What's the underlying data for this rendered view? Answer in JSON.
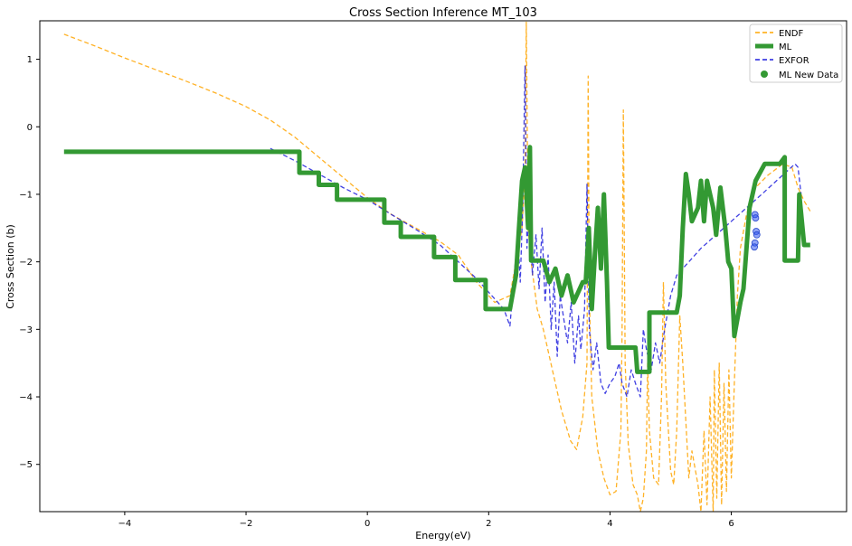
{
  "chart_data": {
    "type": "line",
    "title": "Cross Section Inference MT_103",
    "xlabel": "Energy(eV)",
    "ylabel": "Cross Section (b)",
    "xlim": [
      -5.4,
      7.9
    ],
    "ylim": [
      -5.7,
      1.57
    ],
    "xticks": [
      -4,
      -2,
      0,
      2,
      4,
      6
    ],
    "yticks": [
      -5,
      -4,
      -3,
      -2,
      -1,
      0,
      1
    ],
    "xtick_labels": [
      "−4",
      "−2",
      "0",
      "2",
      "4",
      "6"
    ],
    "ytick_labels": [
      "−5",
      "−4",
      "−3",
      "−2",
      "−1",
      "0",
      "1"
    ],
    "grid": false,
    "legend_position": "top-right",
    "series": [
      {
        "name": "ENDF",
        "color": "#ffa500",
        "style": "dashed",
        "points": [
          [
            -5.0,
            1.37
          ],
          [
            -4.5,
            1.2
          ],
          [
            -4.0,
            1.02
          ],
          [
            -3.5,
            0.85
          ],
          [
            -3.0,
            0.68
          ],
          [
            -2.5,
            0.5
          ],
          [
            -2.0,
            0.3
          ],
          [
            -1.6,
            0.1
          ],
          [
            -1.2,
            -0.15
          ],
          [
            -0.8,
            -0.45
          ],
          [
            -0.4,
            -0.75
          ],
          [
            0.0,
            -1.05
          ],
          [
            0.4,
            -1.3
          ],
          [
            0.8,
            -1.5
          ],
          [
            1.2,
            -1.7
          ],
          [
            1.5,
            -1.9
          ],
          [
            1.8,
            -2.3
          ],
          [
            2.1,
            -2.6
          ],
          [
            2.35,
            -2.5
          ],
          [
            2.45,
            -2.0
          ],
          [
            2.55,
            -1.5
          ],
          [
            2.6,
            -0.7
          ],
          [
            2.62,
            1.55
          ],
          [
            2.65,
            -1.5
          ],
          [
            2.7,
            -2.0
          ],
          [
            2.8,
            -2.7
          ],
          [
            2.9,
            -3.0
          ],
          [
            3.05,
            -3.6
          ],
          [
            3.2,
            -4.2
          ],
          [
            3.35,
            -4.65
          ],
          [
            3.45,
            -4.78
          ],
          [
            3.55,
            -4.3
          ],
          [
            3.62,
            -3.5
          ],
          [
            3.64,
            0.75
          ],
          [
            3.66,
            -2.5
          ],
          [
            3.7,
            -4.0
          ],
          [
            3.8,
            -4.8
          ],
          [
            3.9,
            -5.2
          ],
          [
            4.0,
            -5.45
          ],
          [
            4.1,
            -5.4
          ],
          [
            4.18,
            -4.5
          ],
          [
            4.2,
            -3.0
          ],
          [
            4.22,
            0.25
          ],
          [
            4.25,
            -3.5
          ],
          [
            4.3,
            -4.7
          ],
          [
            4.38,
            -5.3
          ],
          [
            4.45,
            -5.45
          ],
          [
            4.5,
            -5.7
          ],
          [
            4.55,
            -5.5
          ],
          [
            4.6,
            -4.8
          ],
          [
            4.62,
            -3.5
          ],
          [
            4.65,
            -4.5
          ],
          [
            4.72,
            -5.2
          ],
          [
            4.8,
            -5.3
          ],
          [
            4.85,
            -4.0
          ],
          [
            4.88,
            -2.3
          ],
          [
            4.92,
            -3.8
          ],
          [
            5.0,
            -5.1
          ],
          [
            5.05,
            -5.3
          ],
          [
            5.1,
            -4.5
          ],
          [
            5.15,
            -2.8
          ],
          [
            5.2,
            -3.5
          ],
          [
            5.3,
            -5.2
          ],
          [
            5.35,
            -4.8
          ],
          [
            5.45,
            -5.3
          ],
          [
            5.5,
            -5.7
          ],
          [
            5.55,
            -4.5
          ],
          [
            5.6,
            -5.6
          ],
          [
            5.65,
            -4.0
          ],
          [
            5.7,
            -5.7
          ],
          [
            5.72,
            -3.6
          ],
          [
            5.76,
            -5.5
          ],
          [
            5.8,
            -3.5
          ],
          [
            5.84,
            -5.6
          ],
          [
            5.88,
            -3.8
          ],
          [
            5.92,
            -5.4
          ],
          [
            5.96,
            -3.6
          ],
          [
            6.0,
            -5.2
          ],
          [
            6.05,
            -3.8
          ],
          [
            6.1,
            -2.5
          ],
          [
            6.15,
            -1.8
          ],
          [
            6.25,
            -1.3
          ],
          [
            6.4,
            -0.9
          ],
          [
            6.6,
            -0.72
          ],
          [
            6.85,
            -0.55
          ],
          [
            7.0,
            -0.6
          ],
          [
            7.1,
            -0.9
          ],
          [
            7.2,
            -1.1
          ],
          [
            7.3,
            -1.25
          ]
        ]
      },
      {
        "name": "ML",
        "color": "#339933",
        "style": "solid-thick",
        "points": [
          [
            -5.0,
            -0.37
          ],
          [
            -1.12,
            -0.37
          ],
          [
            -1.12,
            -0.68
          ],
          [
            -0.8,
            -0.68
          ],
          [
            -0.8,
            -0.86
          ],
          [
            -0.5,
            -0.86
          ],
          [
            -0.5,
            -1.08
          ],
          [
            0.28,
            -1.08
          ],
          [
            0.28,
            -1.42
          ],
          [
            0.55,
            -1.42
          ],
          [
            0.55,
            -1.63
          ],
          [
            1.1,
            -1.63
          ],
          [
            1.1,
            -1.93
          ],
          [
            1.45,
            -1.93
          ],
          [
            1.45,
            -2.27
          ],
          [
            1.95,
            -2.27
          ],
          [
            1.95,
            -2.7
          ],
          [
            2.35,
            -2.7
          ],
          [
            2.45,
            -2.2
          ],
          [
            2.5,
            -1.5
          ],
          [
            2.55,
            -0.8
          ],
          [
            2.6,
            -0.6
          ],
          [
            2.65,
            -1.5
          ],
          [
            2.68,
            -0.3
          ],
          [
            2.7,
            -1.98
          ],
          [
            2.9,
            -1.98
          ],
          [
            3.0,
            -2.3
          ],
          [
            3.1,
            -2.1
          ],
          [
            3.2,
            -2.5
          ],
          [
            3.3,
            -2.2
          ],
          [
            3.4,
            -2.6
          ],
          [
            3.55,
            -2.3
          ],
          [
            3.6,
            -2.3
          ],
          [
            3.65,
            -1.5
          ],
          [
            3.7,
            -2.7
          ],
          [
            3.75,
            -1.9
          ],
          [
            3.8,
            -1.2
          ],
          [
            3.85,
            -2.1
          ],
          [
            3.9,
            -1.0
          ],
          [
            3.95,
            -2.3
          ],
          [
            3.98,
            -3.27
          ],
          [
            4.42,
            -3.27
          ],
          [
            4.45,
            -3.63
          ],
          [
            4.65,
            -3.63
          ],
          [
            4.65,
            -2.75
          ],
          [
            5.1,
            -2.75
          ],
          [
            5.15,
            -2.5
          ],
          [
            5.2,
            -1.5
          ],
          [
            5.25,
            -0.7
          ],
          [
            5.3,
            -1.0
          ],
          [
            5.35,
            -1.4
          ],
          [
            5.45,
            -1.2
          ],
          [
            5.5,
            -0.8
          ],
          [
            5.55,
            -1.4
          ],
          [
            5.6,
            -0.8
          ],
          [
            5.7,
            -1.2
          ],
          [
            5.75,
            -1.6
          ],
          [
            5.82,
            -0.9
          ],
          [
            5.9,
            -1.5
          ],
          [
            5.95,
            -2.0
          ],
          [
            6.0,
            -2.1
          ],
          [
            6.05,
            -3.1
          ],
          [
            6.15,
            -2.6
          ],
          [
            6.2,
            -2.4
          ],
          [
            6.3,
            -1.2
          ],
          [
            6.4,
            -0.8
          ],
          [
            6.55,
            -0.55
          ],
          [
            6.8,
            -0.55
          ],
          [
            6.88,
            -0.45
          ],
          [
            6.88,
            -1.98
          ],
          [
            7.1,
            -1.98
          ],
          [
            7.12,
            -1.0
          ],
          [
            7.2,
            -1.75
          ],
          [
            7.3,
            -1.75
          ]
        ]
      },
      {
        "name": "EXFOR",
        "color": "#1f1fdd",
        "style": "dashed",
        "points": [
          [
            -1.6,
            -0.32
          ],
          [
            -1.2,
            -0.5
          ],
          [
            -0.8,
            -0.7
          ],
          [
            -0.4,
            -0.9
          ],
          [
            0.0,
            -1.08
          ],
          [
            0.4,
            -1.3
          ],
          [
            0.8,
            -1.52
          ],
          [
            1.2,
            -1.75
          ],
          [
            1.5,
            -2.0
          ],
          [
            1.8,
            -2.25
          ],
          [
            2.05,
            -2.5
          ],
          [
            2.25,
            -2.7
          ],
          [
            2.35,
            -2.95
          ],
          [
            2.42,
            -2.2
          ],
          [
            2.48,
            -1.6
          ],
          [
            2.52,
            -2.3
          ],
          [
            2.56,
            -1.2
          ],
          [
            2.6,
            0.9
          ],
          [
            2.63,
            -1.8
          ],
          [
            2.68,
            -1.0
          ],
          [
            2.72,
            -2.2
          ],
          [
            2.78,
            -1.6
          ],
          [
            2.83,
            -2.4
          ],
          [
            2.88,
            -1.5
          ],
          [
            2.93,
            -2.6
          ],
          [
            2.98,
            -1.9
          ],
          [
            3.03,
            -3.0
          ],
          [
            3.08,
            -2.3
          ],
          [
            3.13,
            -3.4
          ],
          [
            3.18,
            -2.5
          ],
          [
            3.23,
            -2.8
          ],
          [
            3.3,
            -3.2
          ],
          [
            3.36,
            -2.6
          ],
          [
            3.42,
            -3.5
          ],
          [
            3.48,
            -2.8
          ],
          [
            3.52,
            -3.3
          ],
          [
            3.58,
            -2.7
          ],
          [
            3.62,
            -0.85
          ],
          [
            3.66,
            -3.0
          ],
          [
            3.72,
            -3.6
          ],
          [
            3.78,
            -3.2
          ],
          [
            3.85,
            -3.8
          ],
          [
            3.92,
            -3.95
          ],
          [
            4.0,
            -3.8
          ],
          [
            4.08,
            -3.7
          ],
          [
            4.15,
            -3.5
          ],
          [
            4.2,
            -3.8
          ],
          [
            4.28,
            -4.0
          ],
          [
            4.35,
            -3.6
          ],
          [
            4.42,
            -3.8
          ],
          [
            4.5,
            -4.0
          ],
          [
            4.55,
            -3.0
          ],
          [
            4.6,
            -3.3
          ],
          [
            4.68,
            -3.6
          ],
          [
            4.75,
            -3.2
          ],
          [
            4.82,
            -3.5
          ],
          [
            4.9,
            -3.0
          ],
          [
            5.0,
            -2.5
          ],
          [
            5.1,
            -2.2
          ],
          [
            5.5,
            -1.8
          ],
          [
            6.0,
            -1.4
          ],
          [
            6.5,
            -1.0
          ],
          [
            7.05,
            -0.55
          ],
          [
            7.1,
            -0.6
          ],
          [
            7.15,
            -1.0
          ]
        ]
      },
      {
        "name": "ML New Data",
        "color": "#339933",
        "style": "markers",
        "points": [
          [
            6.39,
            -1.3
          ],
          [
            6.4,
            -1.35
          ],
          [
            6.41,
            -1.55
          ],
          [
            6.42,
            -1.6
          ],
          [
            6.39,
            -1.72
          ],
          [
            6.38,
            -1.78
          ]
        ]
      }
    ]
  }
}
